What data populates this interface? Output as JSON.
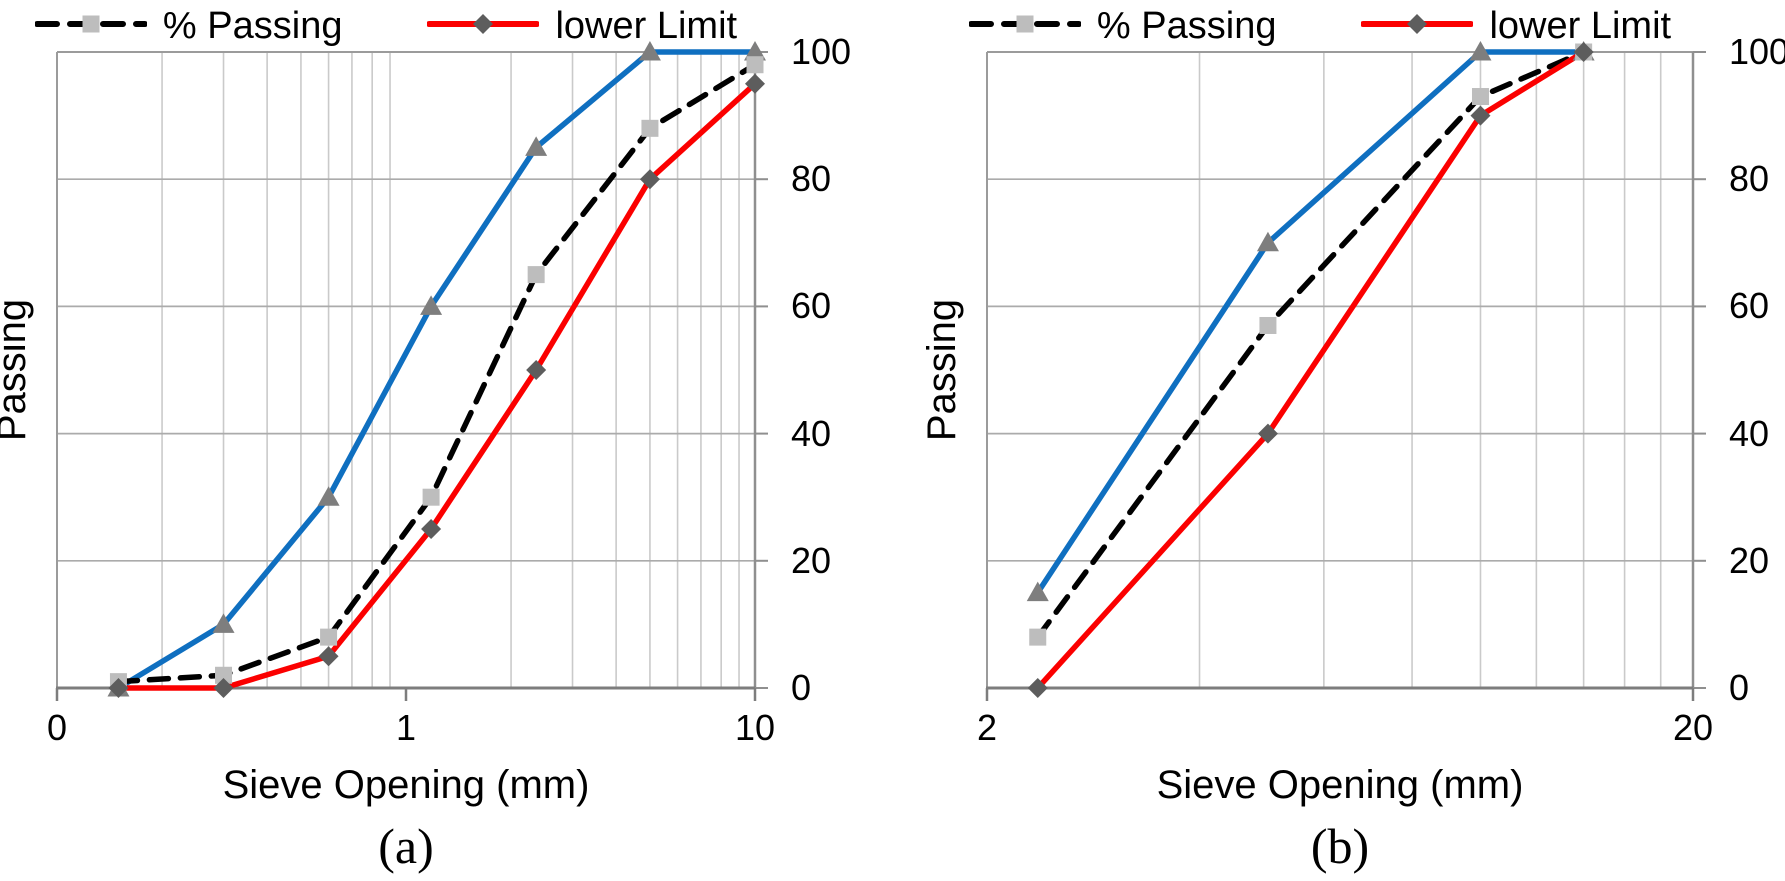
{
  "figure": {
    "palette": {
      "background": "#ffffff",
      "text": "#000000",
      "grid_minor": "#cacaca",
      "grid_major": "#ababab",
      "frame": "#9b9b9b",
      "axis": "#7d7d7d",
      "upper_curve_blue": "#0f6fc0",
      "lower_limit_red": "#fb0000",
      "passing_dashed_black": "#000000",
      "square_marker_gray": "#bdbdbd",
      "triangle_marker_gray": "#7e7e7e",
      "diamond_marker_gray": "#5d5d5d"
    },
    "charts": [
      {
        "caption": "(a)",
        "legend": [
          {
            "label": "% Passing"
          },
          {
            "label": "lower Limit"
          }
        ],
        "chart_data": {
          "type": "line",
          "title": "",
          "xlabel": "Sieve Opening (mm)",
          "ylabel": "Passing",
          "x_scale": "log",
          "xlim": [
            0.1,
            10
          ],
          "ylim": [
            0,
            100
          ],
          "grid": true,
          "legend_position": "top",
          "x_tick_labels": [
            {
              "value": 0.1,
              "label": "0"
            },
            {
              "value": 1,
              "label": "1"
            },
            {
              "value": 10,
              "label": "10"
            }
          ],
          "y_tick_labels": [
            {
              "value": 100,
              "label": "100"
            },
            {
              "value": 80,
              "label": "80"
            },
            {
              "value": 60,
              "label": "60"
            },
            {
              "value": 40,
              "label": "40"
            },
            {
              "value": 20,
              "label": "20"
            },
            {
              "value": 0,
              "label": "0"
            }
          ],
          "y_gridlines": [
            80,
            60,
            40,
            20
          ],
          "x_minor_gridlines": [
            0.2,
            0.3,
            0.4,
            0.5,
            0.6,
            0.7,
            0.8,
            0.9,
            2,
            3,
            4,
            5,
            6,
            7,
            8,
            9
          ],
          "x": [
            0.15,
            0.3,
            0.6,
            1.18,
            2.36,
            5,
            10
          ],
          "series": [
            {
              "name": "",
              "color": "#0f6fc0",
              "line_style": "solid",
              "marker": "triangle",
              "marker_color": "#7e7e7e",
              "values": [
                0,
                10,
                30,
                60,
                85,
                100,
                100
              ]
            },
            {
              "name": "% Passing",
              "color": "#000000",
              "line_style": "dashed",
              "marker": "square",
              "marker_color": "#bdbdbd",
              "values": [
                1,
                2,
                8,
                30,
                65,
                88,
                98
              ]
            },
            {
              "name": "lower Limit",
              "color": "#fb0000",
              "line_style": "solid",
              "marker": "diamond",
              "marker_color": "#5d5d5d",
              "values": [
                0,
                0,
                5,
                25,
                50,
                80,
                95
              ]
            }
          ]
        }
      },
      {
        "caption": "(b)",
        "legend": [
          {
            "label": "% Passing"
          },
          {
            "label": "lower Limit"
          }
        ],
        "chart_data": {
          "type": "line",
          "title": "",
          "xlabel": "Sieve Opening (mm)",
          "ylabel": "Passing",
          "x_scale": "log",
          "xlim": [
            2,
            20
          ],
          "ylim": [
            0,
            100
          ],
          "grid": true,
          "legend_position": "top",
          "x_tick_labels": [
            {
              "value": 2,
              "label": "2"
            },
            {
              "value": 20,
              "label": "20"
            }
          ],
          "y_tick_labels": [
            {
              "value": 100,
              "label": "100"
            },
            {
              "value": 80,
              "label": "80"
            },
            {
              "value": 60,
              "label": "60"
            },
            {
              "value": 40,
              "label": "40"
            },
            {
              "value": 20,
              "label": "20"
            },
            {
              "value": 0,
              "label": "0"
            }
          ],
          "y_gridlines": [
            80,
            60,
            40,
            20
          ],
          "x_minor_gridlines": [
            4,
            6,
            8,
            10,
            12,
            14,
            16,
            18
          ],
          "x": [
            2.36,
            5,
            10,
            14
          ],
          "series": [
            {
              "name": "",
              "color": "#0f6fc0",
              "line_style": "solid",
              "marker": "triangle",
              "marker_color": "#7e7e7e",
              "values": [
                15,
                70,
                100,
                100
              ]
            },
            {
              "name": "% Passing",
              "color": "#000000",
              "line_style": "dashed",
              "marker": "square",
              "marker_color": "#bdbdbd",
              "values": [
                8,
                57,
                93,
                100
              ]
            },
            {
              "name": "lower Limit",
              "color": "#fb0000",
              "line_style": "solid",
              "marker": "diamond",
              "marker_color": "#5d5d5d",
              "values": [
                0,
                40,
                90,
                100
              ]
            }
          ]
        }
      }
    ]
  }
}
